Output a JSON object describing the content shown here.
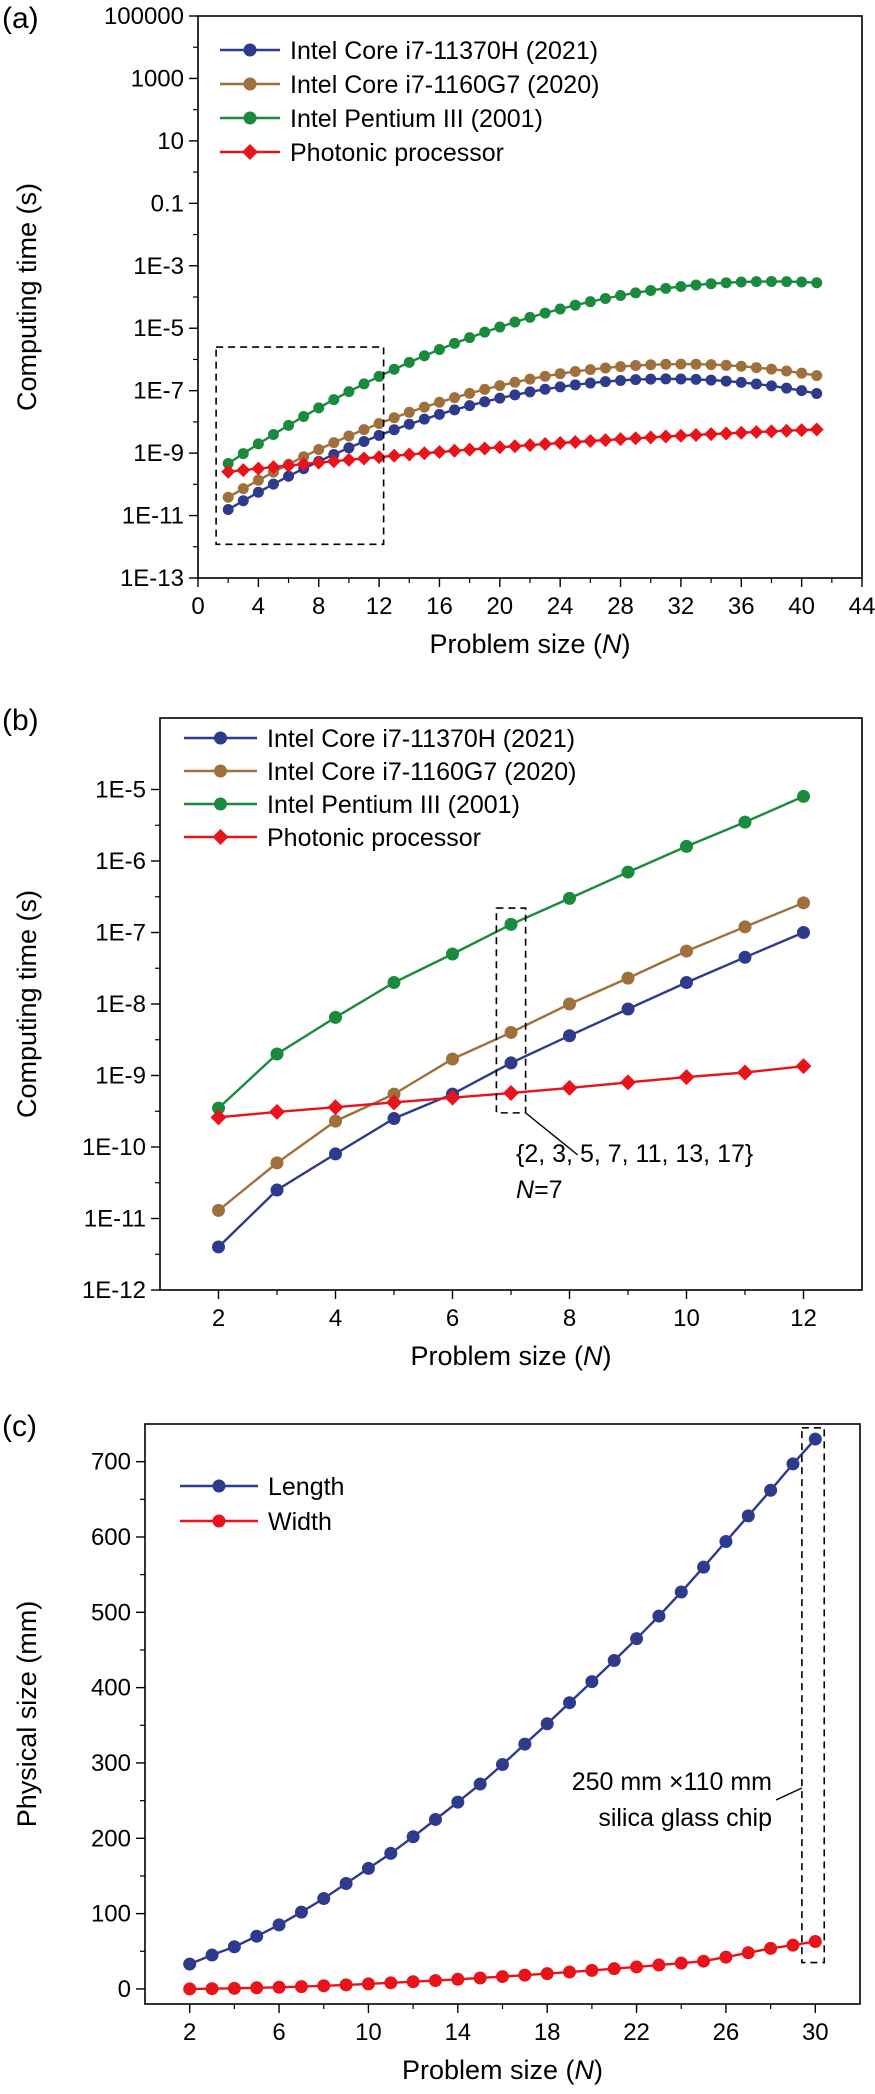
{
  "chart_data": [
    {
      "panel": "(a)",
      "type": "line",
      "yscale": "log",
      "xlabel": "Problem  size (N)",
      "xlabel_main": "Problem  size (",
      "xlabel_var": "N",
      "xlabel_close": ")",
      "ylabel": "Computing time (s)",
      "xlim": [
        0,
        44
      ],
      "ylim": [
        1e-13,
        100000
      ],
      "x_ticks": [
        "0",
        "4",
        "8",
        "12",
        "16",
        "20",
        "24",
        "28",
        "32",
        "36",
        "40",
        "44"
      ],
      "y_ticks": [
        "1E-13",
        "1E-11",
        "1E-9",
        "1E-7",
        "1E-5",
        "1E-3",
        "0.1",
        "10",
        "1000",
        "100000"
      ],
      "legend_position": "top-left",
      "series": [
        {
          "name": "Intel Core i7-11370H (2021)",
          "color": "#2e3a8c",
          "marker": "circle",
          "x_start": 2,
          "x_end": 41,
          "log_fit": [
            -11.4,
            0.306,
            -0.0049
          ]
        },
        {
          "name": "Intel Core i7-1160G7 (2020)",
          "color": "#a0703c",
          "marker": "circle",
          "x_start": 2,
          "x_end": 41,
          "log_fit": [
            -11.0,
            0.302,
            -0.0047
          ]
        },
        {
          "name": "Intel Pentium III (2001)",
          "color": "#1a8a3c",
          "marker": "circle",
          "x_start": 2,
          "x_end": 41,
          "log_fit": [
            -10.0,
            0.342,
            -0.0045
          ]
        },
        {
          "name": "Photonic processor",
          "color": "#e8141c",
          "marker": "diamond",
          "x_start": 2,
          "x_end": 41,
          "log_fit": [
            -9.7,
            0.0527,
            -0.00042
          ]
        }
      ],
      "annotation": {
        "type": "dashed-box",
        "x_range": [
          1.2,
          12.3
        ],
        "y_range": [
          1.2e-12,
          2.5e-06
        ]
      }
    },
    {
      "panel": "(b)",
      "type": "line",
      "yscale": "log",
      "xlabel": "Problem size (N)",
      "xlabel_main": "Problem size (",
      "xlabel_var": "N",
      "xlabel_close": ")",
      "ylabel": "Computing time (s)",
      "xlim": [
        1,
        13
      ],
      "ylim": [
        1e-12,
        0.0001
      ],
      "x_ticks": [
        "2",
        "4",
        "6",
        "8",
        "10",
        "12"
      ],
      "y_ticks": [
        "1E-12",
        "1E-11",
        "1E-10",
        "1E-9",
        "1E-8",
        "1E-7",
        "1E-6",
        "1E-5"
      ],
      "legend_position": "top-left",
      "series": [
        {
          "name": "Intel Core i7-11370H (2021)",
          "color": "#2e3a8c",
          "marker": "circle",
          "x": [
            2,
            3,
            4,
            5,
            6,
            7,
            8,
            9,
            10,
            11,
            12
          ],
          "y": [
            4e-12,
            2.5e-11,
            8e-11,
            2.5e-10,
            5.5e-10,
            1.5e-09,
            3.6e-09,
            8.5e-09,
            2e-08,
            4.5e-08,
            1e-07
          ]
        },
        {
          "name": "Intel Core i7-1160G7 (2020)",
          "color": "#a0703c",
          "marker": "circle",
          "x": [
            2,
            3,
            4,
            5,
            6,
            7,
            8,
            9,
            10,
            11,
            12
          ],
          "y": [
            1.3e-11,
            6e-11,
            2.3e-10,
            5.5e-10,
            1.7e-09,
            4e-09,
            1e-08,
            2.3e-08,
            5.5e-08,
            1.2e-07,
            2.6e-07
          ]
        },
        {
          "name": "Intel Pentium III (2001)",
          "color": "#1a8a3c",
          "marker": "circle",
          "x": [
            2,
            3,
            4,
            5,
            6,
            7,
            8,
            9,
            10,
            11,
            12
          ],
          "y": [
            3.5e-10,
            2e-09,
            6.5e-09,
            2e-08,
            5e-08,
            1.3e-07,
            3e-07,
            7e-07,
            1.6e-06,
            3.5e-06,
            8e-06
          ]
        },
        {
          "name": "Photonic processor",
          "color": "#e8141c",
          "marker": "diamond",
          "x": [
            2,
            3,
            4,
            5,
            6,
            7,
            8,
            9,
            10,
            11,
            12
          ],
          "y": [
            2.6e-10,
            3.1e-10,
            3.6e-10,
            4.2e-10,
            4.9e-10,
            5.7e-10,
            6.7e-10,
            8e-10,
            9.5e-10,
            1.1e-09,
            1.35e-09
          ]
        }
      ],
      "annotation": {
        "type": "dashed-box",
        "x_range": [
          6.75,
          7.25
        ],
        "y_range": [
          3e-10,
          2.2e-07
        ],
        "label_line1": "{2, 3, 5, 7, 11, 13, 17}",
        "label_var": "N",
        "label_eq": "=7"
      }
    },
    {
      "panel": "(c)",
      "type": "line",
      "yscale": "linear",
      "xlabel": "Problem size (N)",
      "xlabel_main": "Problem size (",
      "xlabel_var": "N",
      "xlabel_close": ")",
      "ylabel": "Physical size (mm)",
      "xlim": [
        0,
        32
      ],
      "ylim": [
        -20,
        750
      ],
      "x_ticks": [
        "2",
        "6",
        "10",
        "14",
        "18",
        "22",
        "26",
        "30"
      ],
      "y_ticks": [
        "0",
        "100",
        "200",
        "300",
        "400",
        "500",
        "600",
        "700"
      ],
      "legend_position": "top-left",
      "series": [
        {
          "name": "Length",
          "color": "#2e3a8c",
          "marker": "circle",
          "x": [
            2,
            3,
            4,
            5,
            6,
            7,
            8,
            9,
            10,
            11,
            12,
            13,
            14,
            15,
            16,
            17,
            18,
            19,
            20,
            21,
            22,
            23,
            24,
            25,
            26,
            27,
            28,
            29,
            30
          ],
          "y": [
            33,
            45,
            56,
            70,
            85,
            102,
            120,
            140,
            160,
            180,
            202,
            225,
            248,
            272,
            298,
            325,
            352,
            380,
            408,
            436,
            465,
            495,
            527,
            560,
            594,
            628,
            662,
            697,
            730
          ]
        },
        {
          "name": "Width",
          "color": "#e8141c",
          "marker": "circle",
          "x": [
            2,
            3,
            4,
            5,
            6,
            7,
            8,
            9,
            10,
            11,
            12,
            13,
            14,
            15,
            16,
            17,
            18,
            19,
            20,
            21,
            22,
            23,
            24,
            25,
            26,
            27,
            28,
            29,
            30
          ],
          "y": [
            0,
            0.3,
            0.8,
            1.5,
            2.2,
            3.1,
            4.2,
            5.4,
            6.7,
            8.1,
            9.6,
            11.1,
            12.8,
            14.5,
            16.4,
            18.3,
            20.3,
            22.4,
            24.6,
            26.9,
            29.2,
            31.7,
            34.2,
            36.8,
            42.2,
            48,
            53.8,
            58.2,
            63
          ]
        }
      ],
      "annotation": {
        "type": "dashed-box",
        "x_range": [
          29.4,
          30.4
        ],
        "y_range": [
          35,
          745
        ],
        "label_line1": "250 mm ×110 mm",
        "label_line2": "silica glass chip"
      }
    }
  ]
}
